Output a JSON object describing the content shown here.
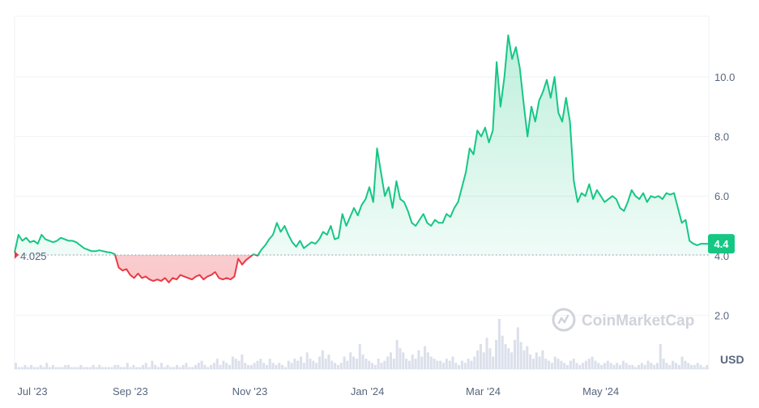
{
  "chart_data": {
    "type": "area",
    "ylabel_unit": "USD",
    "y_ticks": [
      2.0,
      4.0,
      6.0,
      8.0,
      10.0
    ],
    "y_tick_labels": [
      "2.0",
      "4.0",
      "6.0",
      "8.0",
      "10.0"
    ],
    "ylim": [
      0,
      12
    ],
    "x_tick_labels": [
      "Jul '23",
      "Sep '23",
      "Nov '23",
      "Jan '24",
      "Mar '24",
      "May '24"
    ],
    "x_tick_index": [
      0,
      60,
      122,
      183,
      243,
      304
    ],
    "baseline_value": 4.025,
    "baseline_label": "4.025",
    "current_price": 4.4,
    "current_price_label": "4.4",
    "xlim_index": [
      0,
      360
    ],
    "series": [
      {
        "values": [
          [
            0,
            4.1
          ],
          [
            2,
            4.7
          ],
          [
            4,
            4.5
          ],
          [
            6,
            4.6
          ],
          [
            8,
            4.45
          ],
          [
            10,
            4.5
          ],
          [
            12,
            4.4
          ],
          [
            14,
            4.7
          ],
          [
            16,
            4.55
          ],
          [
            18,
            4.5
          ],
          [
            20,
            4.45
          ],
          [
            22,
            4.5
          ],
          [
            24,
            4.6
          ],
          [
            26,
            4.55
          ],
          [
            28,
            4.5
          ],
          [
            30,
            4.5
          ],
          [
            32,
            4.45
          ],
          [
            34,
            4.35
          ],
          [
            36,
            4.25
          ],
          [
            38,
            4.2
          ],
          [
            40,
            4.15
          ],
          [
            42,
            4.15
          ],
          [
            44,
            4.18
          ],
          [
            46,
            4.15
          ],
          [
            48,
            4.12
          ],
          [
            50,
            4.1
          ],
          [
            52,
            4.05
          ],
          [
            54,
            3.6
          ],
          [
            56,
            3.5
          ],
          [
            58,
            3.55
          ],
          [
            60,
            3.35
          ],
          [
            62,
            3.25
          ],
          [
            64,
            3.4
          ],
          [
            66,
            3.25
          ],
          [
            68,
            3.3
          ],
          [
            70,
            3.2
          ],
          [
            72,
            3.15
          ],
          [
            74,
            3.2
          ],
          [
            76,
            3.15
          ],
          [
            78,
            3.25
          ],
          [
            80,
            3.1
          ],
          [
            82,
            3.25
          ],
          [
            84,
            3.2
          ],
          [
            86,
            3.35
          ],
          [
            88,
            3.3
          ],
          [
            90,
            3.25
          ],
          [
            92,
            3.2
          ],
          [
            94,
            3.3
          ],
          [
            96,
            3.35
          ],
          [
            98,
            3.2
          ],
          [
            100,
            3.3
          ],
          [
            102,
            3.35
          ],
          [
            104,
            3.45
          ],
          [
            106,
            3.25
          ],
          [
            108,
            3.2
          ],
          [
            110,
            3.25
          ],
          [
            112,
            3.2
          ],
          [
            114,
            3.3
          ],
          [
            116,
            3.9
          ],
          [
            118,
            3.7
          ],
          [
            120,
            3.85
          ],
          [
            122,
            3.95
          ],
          [
            124,
            4.05
          ],
          [
            126,
            4.0
          ],
          [
            128,
            4.2
          ],
          [
            130,
            4.35
          ],
          [
            132,
            4.55
          ],
          [
            134,
            4.7
          ],
          [
            136,
            5.1
          ],
          [
            138,
            4.8
          ],
          [
            140,
            5.0
          ],
          [
            142,
            4.7
          ],
          [
            144,
            4.45
          ],
          [
            146,
            4.3
          ],
          [
            148,
            4.5
          ],
          [
            150,
            4.25
          ],
          [
            152,
            4.35
          ],
          [
            154,
            4.45
          ],
          [
            156,
            4.4
          ],
          [
            158,
            4.55
          ],
          [
            160,
            4.8
          ],
          [
            162,
            4.7
          ],
          [
            164,
            5.0
          ],
          [
            166,
            4.55
          ],
          [
            168,
            4.6
          ],
          [
            170,
            5.4
          ],
          [
            172,
            5.0
          ],
          [
            174,
            5.3
          ],
          [
            176,
            5.6
          ],
          [
            178,
            5.35
          ],
          [
            180,
            5.7
          ],
          [
            182,
            5.9
          ],
          [
            184,
            6.3
          ],
          [
            186,
            5.8
          ],
          [
            188,
            7.6
          ],
          [
            190,
            6.8
          ],
          [
            192,
            6.0
          ],
          [
            194,
            6.3
          ],
          [
            196,
            5.6
          ],
          [
            198,
            6.5
          ],
          [
            200,
            5.9
          ],
          [
            202,
            5.8
          ],
          [
            204,
            5.5
          ],
          [
            206,
            5.1
          ],
          [
            208,
            5.0
          ],
          [
            210,
            5.2
          ],
          [
            212,
            5.4
          ],
          [
            214,
            5.1
          ],
          [
            216,
            5.0
          ],
          [
            218,
            5.2
          ],
          [
            220,
            5.1
          ],
          [
            222,
            5.1
          ],
          [
            224,
            5.4
          ],
          [
            226,
            5.3
          ],
          [
            228,
            5.6
          ],
          [
            230,
            5.8
          ],
          [
            232,
            6.3
          ],
          [
            234,
            6.8
          ],
          [
            236,
            7.6
          ],
          [
            238,
            7.4
          ],
          [
            240,
            8.2
          ],
          [
            242,
            8.0
          ],
          [
            244,
            8.3
          ],
          [
            246,
            7.8
          ],
          [
            248,
            8.2
          ],
          [
            250,
            10.5
          ],
          [
            252,
            9.0
          ],
          [
            254,
            10.0
          ],
          [
            256,
            11.4
          ],
          [
            258,
            10.6
          ],
          [
            260,
            11.0
          ],
          [
            262,
            10.3
          ],
          [
            264,
            9.1
          ],
          [
            266,
            8.0
          ],
          [
            268,
            9.0
          ],
          [
            270,
            8.5
          ],
          [
            272,
            9.2
          ],
          [
            274,
            9.5
          ],
          [
            276,
            9.9
          ],
          [
            278,
            9.3
          ],
          [
            280,
            10.0
          ],
          [
            282,
            8.8
          ],
          [
            284,
            8.5
          ],
          [
            286,
            9.3
          ],
          [
            288,
            8.5
          ],
          [
            290,
            6.5
          ],
          [
            292,
            5.8
          ],
          [
            294,
            6.1
          ],
          [
            296,
            6.0
          ],
          [
            298,
            6.4
          ],
          [
            300,
            5.9
          ],
          [
            302,
            6.2
          ],
          [
            304,
            6.0
          ],
          [
            306,
            5.8
          ],
          [
            308,
            5.9
          ],
          [
            310,
            6.0
          ],
          [
            312,
            5.9
          ],
          [
            314,
            5.6
          ],
          [
            316,
            5.5
          ],
          [
            318,
            5.8
          ],
          [
            320,
            6.2
          ],
          [
            322,
            6.0
          ],
          [
            324,
            5.9
          ],
          [
            326,
            6.1
          ],
          [
            328,
            5.8
          ],
          [
            330,
            6.0
          ],
          [
            332,
            5.95
          ],
          [
            334,
            6.0
          ],
          [
            336,
            5.9
          ],
          [
            338,
            6.1
          ],
          [
            340,
            6.05
          ],
          [
            342,
            6.1
          ],
          [
            344,
            5.6
          ],
          [
            346,
            5.1
          ],
          [
            348,
            5.2
          ],
          [
            350,
            4.5
          ],
          [
            352,
            4.4
          ],
          [
            354,
            4.35
          ],
          [
            356,
            4.4
          ],
          [
            358,
            4.4
          ],
          [
            360,
            4.4
          ]
        ]
      }
    ],
    "volume": [
      3,
      1,
      1,
      2,
      1,
      2,
      1,
      1,
      2,
      1,
      3,
      1,
      2,
      1,
      1,
      1,
      2,
      2,
      1,
      1,
      1,
      2,
      1,
      1,
      1,
      2,
      1,
      2,
      1,
      1,
      1,
      1,
      2,
      2,
      1,
      1,
      3,
      1,
      2,
      1,
      1,
      2,
      3,
      1,
      4,
      2,
      1,
      3,
      1,
      2,
      1,
      1,
      2,
      1,
      2,
      3,
      1,
      1,
      2,
      3,
      4,
      2,
      1,
      2,
      3,
      5,
      2,
      4,
      3,
      2,
      6,
      5,
      4,
      7,
      3,
      2,
      2,
      3,
      4,
      5,
      3,
      2,
      5,
      3,
      2,
      3,
      2,
      1,
      4,
      3,
      5,
      4,
      6,
      3,
      8,
      5,
      4,
      3,
      6,
      9,
      5,
      7,
      4,
      3,
      2,
      3,
      6,
      4,
      8,
      6,
      5,
      12,
      7,
      5,
      4,
      3,
      2,
      5,
      3,
      4,
      6,
      8,
      5,
      14,
      10,
      8,
      5,
      4,
      7,
      5,
      9,
      6,
      11,
      8,
      6,
      5,
      4,
      4,
      3,
      5,
      4,
      6,
      3,
      2,
      4,
      3,
      5,
      4,
      6,
      9,
      12,
      8,
      15,
      10,
      6,
      14,
      24,
      16,
      12,
      10,
      8,
      14,
      20,
      13,
      9,
      11,
      7,
      5,
      8,
      6,
      9,
      5,
      4,
      3,
      6,
      5,
      4,
      3,
      2,
      4,
      5,
      3,
      2,
      3,
      4,
      5,
      6,
      4,
      3,
      2,
      3,
      4,
      3,
      2,
      3,
      2,
      4,
      3,
      2,
      2,
      1,
      2,
      3,
      2,
      4,
      3,
      2,
      3,
      12,
      5,
      3,
      2,
      4,
      3,
      2,
      6,
      4,
      3,
      2,
      2,
      3,
      2,
      1,
      2
    ]
  },
  "watermark": {
    "text": "CoinMarketCap"
  },
  "colors": {
    "up_line": "#16c784",
    "down_line": "#ea3943",
    "up_fill": "#16c784",
    "down_fill": "#ea3943",
    "grid": "#eff2f5",
    "badge_bg": "#16c784",
    "volume": "#cfd6e4"
  }
}
